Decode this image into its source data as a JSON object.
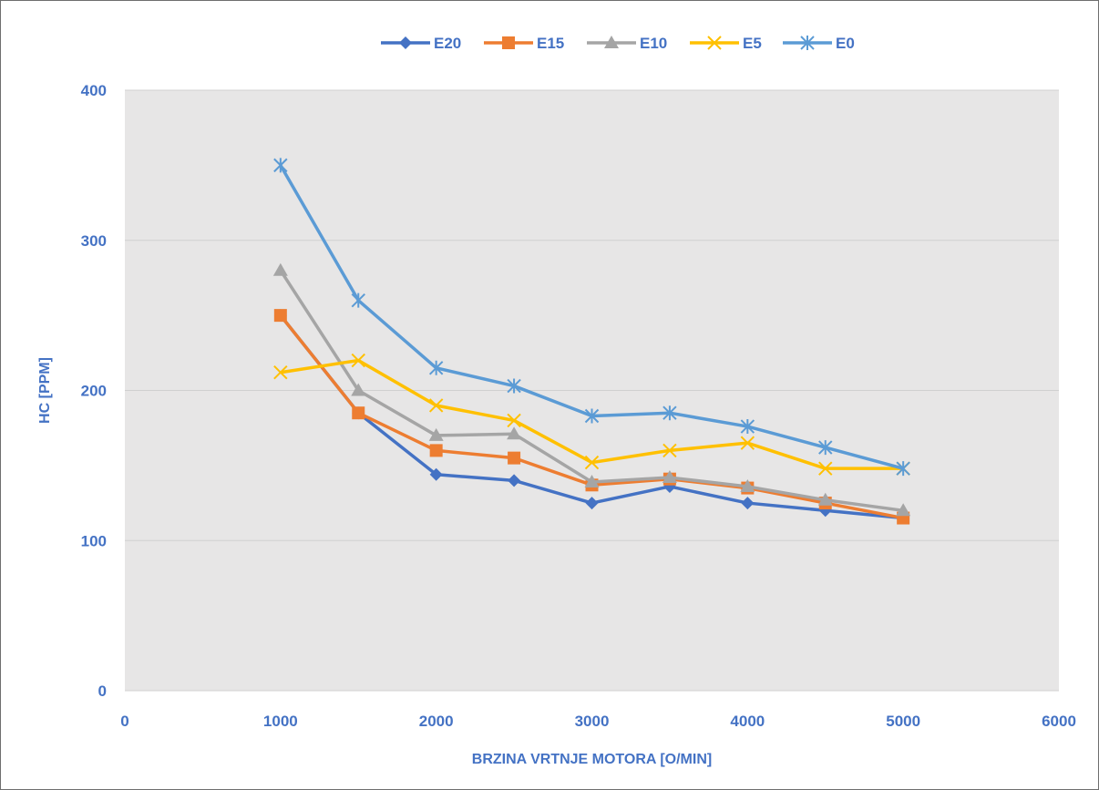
{
  "chart_data": {
    "type": "line",
    "title": "",
    "xlabel": "BRZINA VRTNJE MOTORA [O/MIN]",
    "ylabel": "HC [PPM]",
    "xlim": [
      0,
      6000
    ],
    "ylim": [
      0,
      400
    ],
    "xticks": [
      0,
      1000,
      2000,
      3000,
      4000,
      5000,
      6000
    ],
    "yticks": [
      0,
      100,
      200,
      300,
      400
    ],
    "grid": true,
    "legend_position": "top",
    "x": [
      1000,
      1500,
      2000,
      2500,
      3000,
      3500,
      4000,
      4500,
      5000
    ],
    "series": [
      {
        "name": "E20",
        "color": "#4472c4",
        "marker": "diamond",
        "values": [
          250,
          185,
          144,
          140,
          125,
          136,
          125,
          120,
          115
        ]
      },
      {
        "name": "E15",
        "color": "#ed7d31",
        "marker": "square",
        "values": [
          250,
          185,
          160,
          155,
          137,
          141,
          135,
          125,
          115
        ]
      },
      {
        "name": "E10",
        "color": "#a5a5a5",
        "marker": "triangle",
        "values": [
          280,
          200,
          170,
          171,
          139,
          142,
          136,
          127,
          120
        ]
      },
      {
        "name": "E5",
        "color": "#ffc000",
        "marker": "x",
        "values": [
          212,
          220,
          190,
          180,
          152,
          160,
          165,
          148,
          148
        ]
      },
      {
        "name": "E0",
        "color": "#5b9bd5",
        "marker": "star",
        "values": [
          350,
          260,
          215,
          203,
          183,
          185,
          176,
          162,
          148
        ]
      }
    ]
  }
}
